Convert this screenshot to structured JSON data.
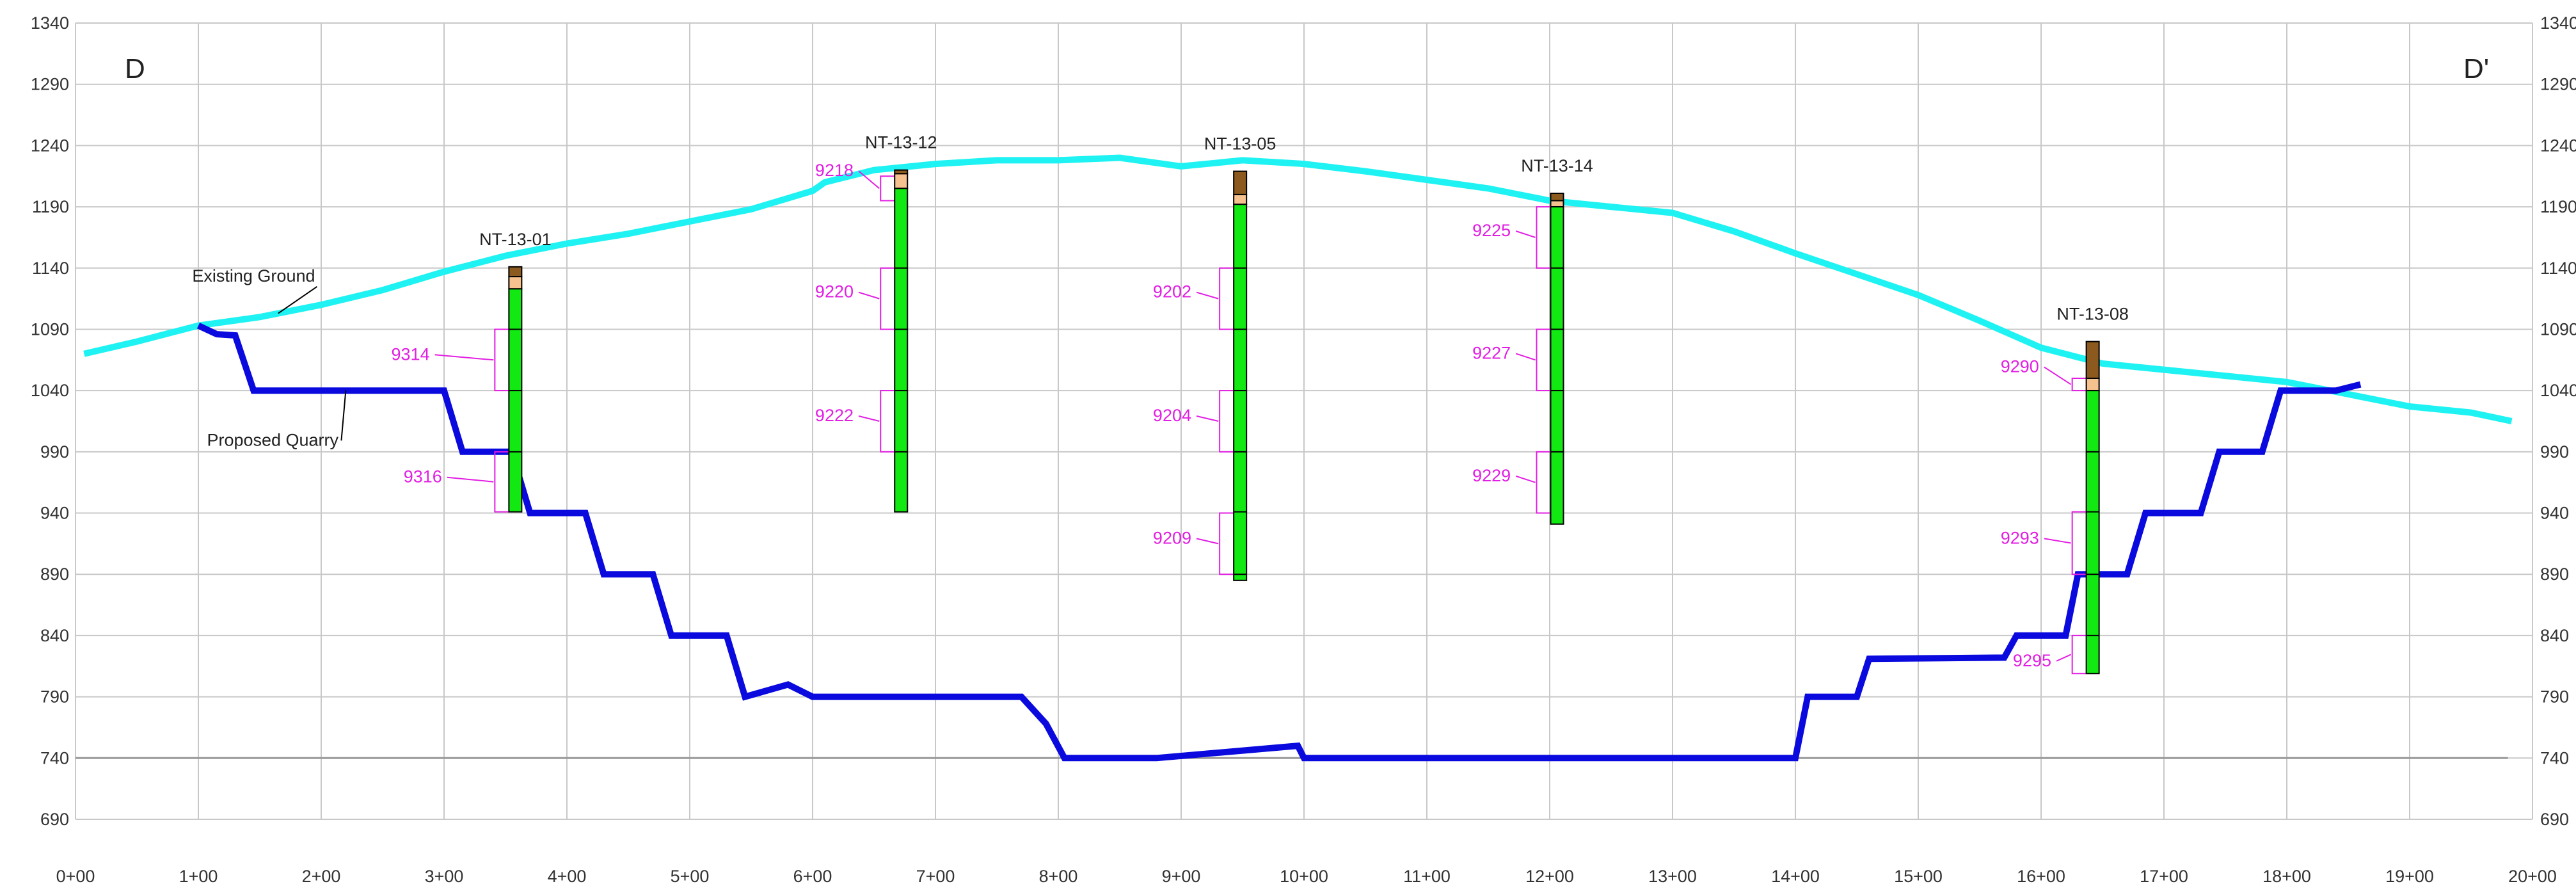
{
  "section": {
    "start_label": "D",
    "end_label": "D'"
  },
  "chart_data": {
    "type": "line",
    "title": "",
    "xlabel": "",
    "ylabel": "",
    "x_unit": "station_ft",
    "xlim": [
      0,
      2000
    ],
    "ylim": [
      690,
      1340
    ],
    "x_ticks": [
      0,
      100,
      200,
      300,
      400,
      500,
      600,
      700,
      800,
      900,
      1000,
      1100,
      1200,
      1300,
      1400,
      1500,
      1600,
      1700,
      1800,
      1900,
      2000
    ],
    "x_tick_labels": [
      "0+00",
      "1+00",
      "2+00",
      "3+00",
      "4+00",
      "5+00",
      "6+00",
      "7+00",
      "8+00",
      "9+00",
      "10+00",
      "11+00",
      "12+00",
      "13+00",
      "14+00",
      "15+00",
      "16+00",
      "17+00",
      "18+00",
      "19+00",
      "20+00"
    ],
    "y_ticks": [
      690,
      740,
      790,
      840,
      890,
      940,
      990,
      1040,
      1090,
      1140,
      1190,
      1240,
      1290,
      1340
    ],
    "y_tick_labels": [
      "690",
      "740",
      "790",
      "840",
      "890",
      "940",
      "990",
      "1040",
      "1090",
      "1140",
      "1190",
      "1240",
      "1290",
      "1340"
    ],
    "grid": true,
    "base_line_elev": 740,
    "colors": {
      "existing": "#1ff2f2",
      "quarry": "#0a0adf",
      "grid": "#c8c8c8",
      "sample": "#e21ee2",
      "green": "#12e812",
      "brown": "#8c5a1e",
      "tan": "#f5c28f"
    },
    "series": [
      {
        "name": "Existing Ground",
        "points": [
          [
            7,
            1070
          ],
          [
            50,
            1080
          ],
          [
            100,
            1093
          ],
          [
            150,
            1100
          ],
          [
            200,
            1110
          ],
          [
            250,
            1122
          ],
          [
            300,
            1137
          ],
          [
            350,
            1150
          ],
          [
            400,
            1160
          ],
          [
            450,
            1168
          ],
          [
            500,
            1178
          ],
          [
            550,
            1188
          ],
          [
            600,
            1203
          ],
          [
            610,
            1210
          ],
          [
            650,
            1220
          ],
          [
            700,
            1225
          ],
          [
            750,
            1228
          ],
          [
            800,
            1228
          ],
          [
            850,
            1230
          ],
          [
            900,
            1223
          ],
          [
            950,
            1228
          ],
          [
            1000,
            1225
          ],
          [
            1050,
            1219
          ],
          [
            1100,
            1212
          ],
          [
            1150,
            1205
          ],
          [
            1200,
            1195
          ],
          [
            1250,
            1190
          ],
          [
            1300,
            1185
          ],
          [
            1350,
            1170
          ],
          [
            1400,
            1152
          ],
          [
            1450,
            1135
          ],
          [
            1500,
            1118
          ],
          [
            1550,
            1097
          ],
          [
            1600,
            1075
          ],
          [
            1650,
            1062
          ],
          [
            1700,
            1057
          ],
          [
            1750,
            1052
          ],
          [
            1800,
            1047
          ],
          [
            1850,
            1037
          ],
          [
            1900,
            1027
          ],
          [
            1950,
            1022
          ],
          [
            1983,
            1015
          ]
        ]
      },
      {
        "name": "Proposed Quarry",
        "points": [
          [
            100,
            1093
          ],
          [
            115,
            1086
          ],
          [
            130,
            1085
          ],
          [
            145,
            1040
          ],
          [
            300,
            1040
          ],
          [
            315,
            990
          ],
          [
            355,
            990
          ],
          [
            370,
            940
          ],
          [
            415,
            940
          ],
          [
            430,
            890
          ],
          [
            470,
            890
          ],
          [
            485,
            840
          ],
          [
            530,
            840
          ],
          [
            545,
            790
          ],
          [
            580,
            800
          ],
          [
            600,
            790
          ],
          [
            770,
            790
          ],
          [
            790,
            768
          ],
          [
            805,
            740
          ],
          [
            880,
            740
          ],
          [
            995,
            750
          ],
          [
            1000,
            740
          ],
          [
            1400,
            740
          ],
          [
            1410,
            790
          ],
          [
            1450,
            790
          ],
          [
            1460,
            821
          ],
          [
            1570,
            822
          ],
          [
            1580,
            840
          ],
          [
            1620,
            840
          ],
          [
            1630,
            890
          ],
          [
            1670,
            890
          ],
          [
            1685,
            940
          ],
          [
            1730,
            940
          ],
          [
            1745,
            990
          ],
          [
            1780,
            990
          ],
          [
            1795,
            1040
          ],
          [
            1835,
            1040
          ],
          [
            1840,
            1040
          ],
          [
            1860,
            1045
          ]
        ]
      }
    ],
    "boreholes": [
      {
        "id": "NT-13-01",
        "x": 358,
        "top": 1141,
        "bottom": 941,
        "col_top": 1141,
        "units": [
          {
            "from": 1141,
            "to": 1133,
            "type": "brown"
          },
          {
            "from": 1133,
            "to": 1123,
            "type": "tan"
          },
          {
            "from": 1123,
            "to": 941,
            "type": "green"
          }
        ],
        "ticks": [
          1090,
          1040,
          990
        ]
      },
      {
        "id": "NT-13-12",
        "x": 672,
        "top": 1220,
        "bottom": 941,
        "col_top": 1220,
        "units": [
          {
            "from": 1220,
            "to": 1217,
            "type": "brown"
          },
          {
            "from": 1217,
            "to": 1205,
            "type": "tan"
          },
          {
            "from": 1205,
            "to": 941,
            "type": "green"
          }
        ],
        "ticks": [
          1140,
          1090,
          1040,
          990
        ]
      },
      {
        "id": "NT-13-05",
        "x": 948,
        "top": 1219,
        "bottom": 885,
        "col_top": 1219,
        "units": [
          {
            "from": 1219,
            "to": 1200,
            "type": "brown"
          },
          {
            "from": 1200,
            "to": 1192,
            "type": "tan"
          },
          {
            "from": 1192,
            "to": 885,
            "type": "green"
          }
        ],
        "ticks": [
          1140,
          1090,
          1040,
          990,
          941,
          890
        ]
      },
      {
        "id": "NT-13-14",
        "x": 1206,
        "top": 1201,
        "bottom": 931,
        "col_top": 1201,
        "units": [
          {
            "from": 1201,
            "to": 1195,
            "type": "brown"
          },
          {
            "from": 1195,
            "to": 1190,
            "type": "tan"
          },
          {
            "from": 1190,
            "to": 931,
            "type": "green"
          }
        ],
        "ticks": [
          1140,
          1090,
          1040,
          990
        ]
      },
      {
        "id": "NT-13-08",
        "x": 1642,
        "top": 1080,
        "bottom": 809,
        "col_top": 1080,
        "units": [
          {
            "from": 1080,
            "to": 1050,
            "type": "brown"
          },
          {
            "from": 1050,
            "to": 1040,
            "type": "tan"
          },
          {
            "from": 1040,
            "to": 809,
            "type": "green"
          }
        ],
        "ticks": [
          990,
          941,
          890,
          840
        ]
      }
    ],
    "samples": [
      {
        "id": "9314",
        "hole_x": 358,
        "from": 1090,
        "to": 1040,
        "label_x": 255,
        "label_elev": 1065
      },
      {
        "id": "9316",
        "hole_x": 358,
        "from": 990,
        "to": 941,
        "label_x": 265,
        "label_elev": 965
      },
      {
        "id": "9218",
        "hole_x": 672,
        "from": 1215,
        "to": 1195,
        "label_x": 600,
        "label_elev": 1215
      },
      {
        "id": "9220",
        "hole_x": 672,
        "from": 1140,
        "to": 1090,
        "label_x": 600,
        "label_elev": 1116
      },
      {
        "id": "9222",
        "hole_x": 672,
        "from": 1040,
        "to": 990,
        "label_x": 600,
        "label_elev": 1015
      },
      {
        "id": "9202",
        "hole_x": 948,
        "from": 1140,
        "to": 1090,
        "label_x": 875,
        "label_elev": 1116
      },
      {
        "id": "9204",
        "hole_x": 948,
        "from": 1040,
        "to": 990,
        "label_x": 875,
        "label_elev": 1015
      },
      {
        "id": "9209",
        "hole_x": 948,
        "from": 940,
        "to": 890,
        "label_x": 875,
        "label_elev": 915
      },
      {
        "id": "9225",
        "hole_x": 1206,
        "from": 1190,
        "to": 1140,
        "label_x": 1135,
        "label_elev": 1166
      },
      {
        "id": "9227",
        "hole_x": 1206,
        "from": 1090,
        "to": 1040,
        "label_x": 1135,
        "label_elev": 1066
      },
      {
        "id": "9229",
        "hole_x": 1206,
        "from": 990,
        "to": 940,
        "label_x": 1135,
        "label_elev": 966
      },
      {
        "id": "9290",
        "hole_x": 1642,
        "from": 1050,
        "to": 1040,
        "label_x": 1565,
        "label_elev": 1055
      },
      {
        "id": "9293",
        "hole_x": 1642,
        "from": 941,
        "to": 890,
        "label_x": 1565,
        "label_elev": 915
      },
      {
        "id": "9295",
        "hole_x": 1642,
        "from": 840,
        "to": 809,
        "label_x": 1575,
        "label_elev": 815
      }
    ],
    "annotations": [
      {
        "text": "Existing Ground",
        "label_x": 95,
        "label_elev": 1129,
        "target_x": 165,
        "target_elev": 1103
      },
      {
        "text": "Proposed Quarry",
        "label_x": 107,
        "label_elev": 995,
        "target_x": 220,
        "target_elev": 1040
      }
    ]
  }
}
